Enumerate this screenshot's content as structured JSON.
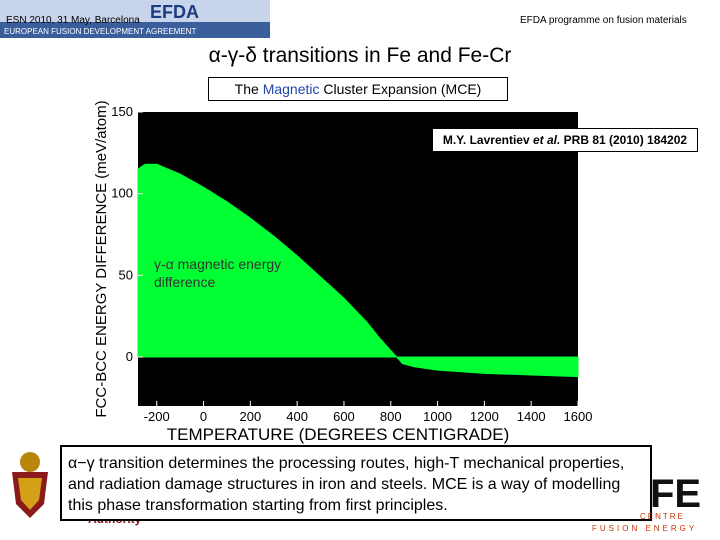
{
  "header": {
    "left_text": "ESN 2010, 31 May, Barcelona",
    "right_text": "EFDA programme on fusion materials",
    "logo_text": "EFDA",
    "logo_subtitle": "EUROPEAN FUSION DEVELOPMENT AGREEMENT"
  },
  "slide": {
    "title": "α-γ-δ transitions in Fe and Fe-Cr",
    "mce_prefix": "The ",
    "mce_highlight": "Magnetic",
    "mce_suffix": " Cluster Expansion (MCE)",
    "reference_author": "M.Y. Lavrentiev ",
    "reference_etal": "et al.",
    "reference_journal": " PRB  81 (2010) 184202",
    "annotation": "γ-α magnetic energy difference",
    "summary": "α−γ transition determines the processing routes, high-T mechanical properties, and radiation damage structures in iron and steels. MCE is a way of modelling this phase transformation starting from first principles."
  },
  "footer": {
    "authority": "Authority",
    "fe_logo": "FE",
    "fe_sub1": "CENTRE",
    "fe_sub2": "FUSION ENERGY"
  },
  "chart_data": {
    "type": "area",
    "xlabel": "TEMPERATURE (DEGREES CENTIGRADE)",
    "ylabel": "FCC-BCC ENERGY DIFFERENCE (meV/atom)",
    "xlim": [
      -280,
      1600
    ],
    "ylim": [
      -30,
      150
    ],
    "xticks": [
      -200,
      0,
      200,
      400,
      600,
      800,
      1000,
      1200,
      1400,
      1600
    ],
    "yticks": [
      0,
      50,
      100,
      150
    ],
    "background": "#000000",
    "fill_color": "#00ff33",
    "series": [
      {
        "name": "γ-α magnetic energy difference",
        "x": [
          -280,
          -250,
          -200,
          -150,
          -100,
          0,
          100,
          200,
          300,
          400,
          500,
          600,
          700,
          750,
          800,
          850,
          900,
          1000,
          1200,
          1400,
          1600
        ],
        "y": [
          115,
          118,
          118,
          115,
          112,
          104,
          95,
          85,
          74,
          62,
          49,
          36,
          21,
          12,
          4,
          -4,
          -6,
          -8,
          -10,
          -11,
          -12
        ]
      }
    ]
  }
}
